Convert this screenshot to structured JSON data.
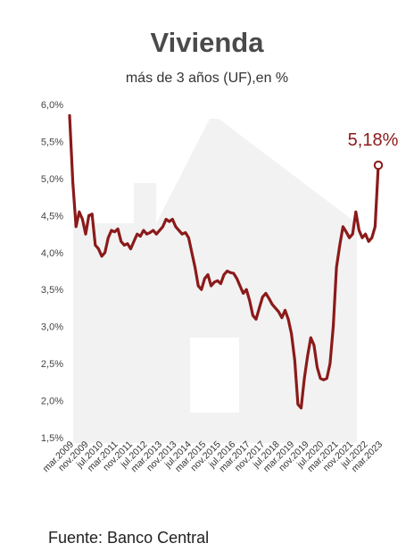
{
  "title": "Vivienda",
  "subtitle": "más de 3 años (UF),en %",
  "source": "Fuente: Banco Central",
  "colors": {
    "line": "#8b1a1a",
    "house": "#f2f2f2",
    "window": "#ffffff"
  },
  "chart_data": {
    "type": "line",
    "title": "Vivienda",
    "subtitle": "más de 3 años (UF),en %",
    "ylim": [
      1.5,
      6.0
    ],
    "y_ticks": [
      1.5,
      2.0,
      2.5,
      3.0,
      3.5,
      4.0,
      4.5,
      5.0,
      5.5,
      6.0
    ],
    "y_tick_labels": [
      "1,5%",
      "2,0%",
      "2,5%",
      "3,0%",
      "3,5%",
      "4,0%",
      "4,5%",
      "5,0%",
      "5,5%",
      "6,0%"
    ],
    "x_tick_labels": [
      "mar.2009",
      "nov.2009",
      "jul.2010",
      "mar.2011",
      "nov.2011",
      "jul.2012",
      "mar.2013",
      "nov.2013",
      "jul.2014",
      "mar.2015",
      "nov.2015",
      "jul.2016",
      "mar.2017",
      "nov.2017",
      "jul.2018",
      "mar.2019",
      "nov.2019",
      "jul.2020",
      "mar.2021",
      "nov.2021",
      "jul.2022",
      "mar.2023"
    ],
    "annotation": "5,18%",
    "series": [
      {
        "values": [
          5.85,
          4.95,
          4.35,
          4.55,
          4.45,
          4.25,
          4.5,
          4.52,
          4.1,
          4.05,
          3.95,
          4.0,
          4.2,
          4.3,
          4.28,
          4.32,
          4.15,
          4.1,
          4.12,
          4.05,
          4.15,
          4.25,
          4.22,
          4.3,
          4.25,
          4.27,
          4.3,
          4.25,
          4.3,
          4.35,
          4.45,
          4.42,
          4.45,
          4.35,
          4.3,
          4.25,
          4.27,
          4.2,
          4.0,
          3.8,
          3.55,
          3.5,
          3.65,
          3.7,
          3.55,
          3.6,
          3.62,
          3.58,
          3.7,
          3.75,
          3.73,
          3.72,
          3.65,
          3.55,
          3.45,
          3.5,
          3.35,
          3.15,
          3.1,
          3.25,
          3.4,
          3.45,
          3.38,
          3.3,
          3.25,
          3.2,
          3.12,
          3.22,
          3.1,
          2.9,
          2.55,
          1.95,
          1.9,
          2.3,
          2.6,
          2.85,
          2.75,
          2.45,
          2.3,
          2.28,
          2.3,
          2.5,
          3.0,
          3.8,
          4.1,
          4.35,
          4.28,
          4.2,
          4.25,
          4.55,
          4.3,
          4.2,
          4.25,
          4.15,
          4.2,
          4.35,
          5.18
        ]
      }
    ],
    "grid": false,
    "legend": "none"
  }
}
